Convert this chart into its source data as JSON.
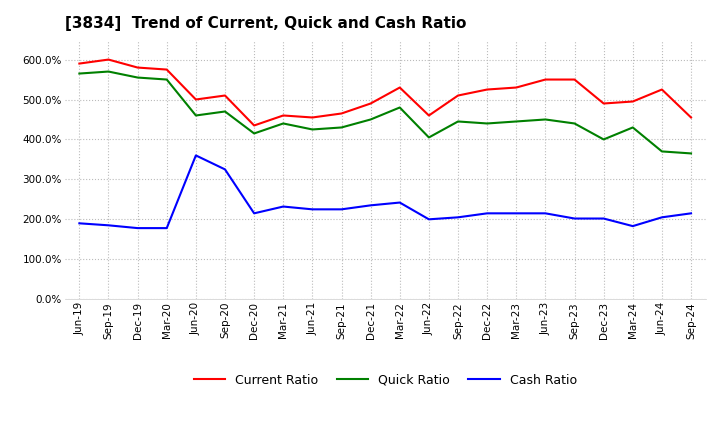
{
  "title": "[3834]  Trend of Current, Quick and Cash Ratio",
  "labels": [
    "Jun-19",
    "Sep-19",
    "Dec-19",
    "Mar-20",
    "Jun-20",
    "Sep-20",
    "Dec-20",
    "Mar-21",
    "Jun-21",
    "Sep-21",
    "Dec-21",
    "Mar-22",
    "Jun-22",
    "Sep-22",
    "Dec-22",
    "Mar-23",
    "Jun-23",
    "Sep-23",
    "Dec-23",
    "Mar-24",
    "Jun-24",
    "Sep-24"
  ],
  "current_ratio": [
    590,
    600,
    580,
    575,
    500,
    510,
    435,
    460,
    455,
    465,
    490,
    530,
    460,
    510,
    525,
    530,
    550,
    550,
    490,
    495,
    525,
    455
  ],
  "quick_ratio": [
    565,
    570,
    555,
    550,
    460,
    470,
    415,
    440,
    425,
    430,
    450,
    480,
    405,
    445,
    440,
    445,
    450,
    440,
    400,
    430,
    370,
    365
  ],
  "cash_ratio": [
    190,
    185,
    178,
    178,
    360,
    325,
    215,
    232,
    225,
    225,
    235,
    242,
    200,
    205,
    215,
    215,
    215,
    202,
    202,
    183,
    205,
    215
  ],
  "current_color": "#FF0000",
  "quick_color": "#008000",
  "cash_color": "#0000FF",
  "ylim": [
    0,
    650
  ],
  "yticks": [
    0,
    100,
    200,
    300,
    400,
    500,
    600
  ],
  "background_color": "#FFFFFF",
  "grid_color": "#BBBBBB",
  "line_width": 1.5,
  "title_fontsize": 11,
  "tick_fontsize": 7.5,
  "legend_fontsize": 9
}
